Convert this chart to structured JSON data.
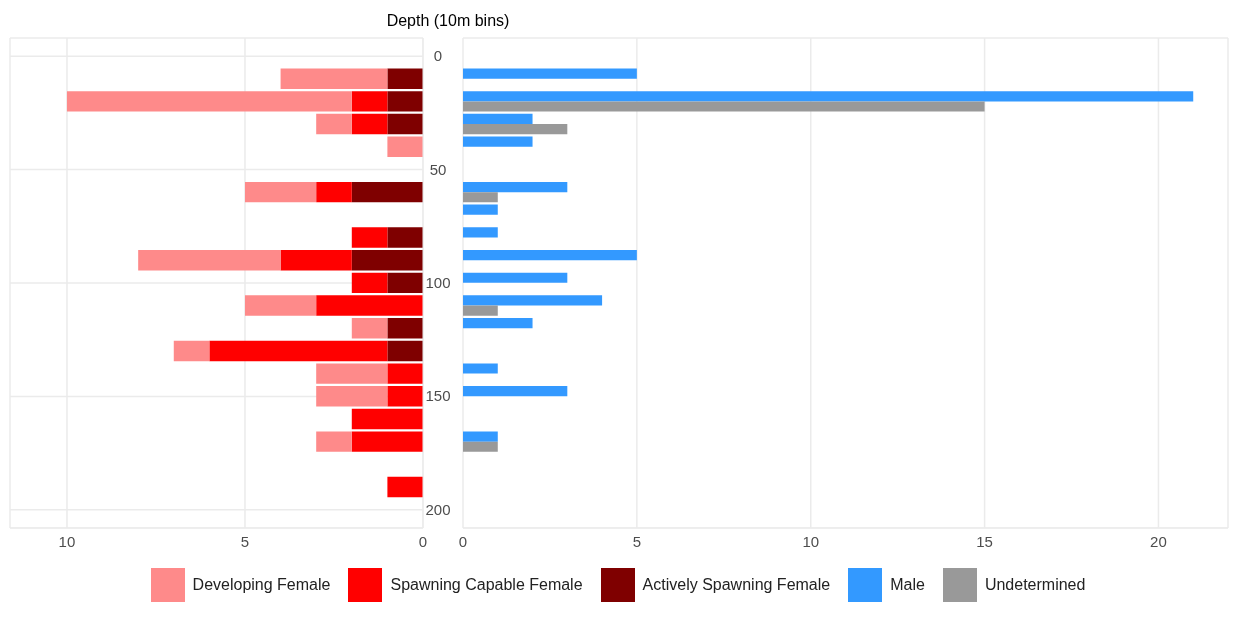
{
  "chart_data": [
    {
      "type": "bar",
      "orientation": "horizontal",
      "stacked": true,
      "ylabel": "Depth (10m bins)",
      "x": [
        10,
        20,
        30,
        40,
        50,
        60,
        70,
        80,
        90,
        100,
        110,
        120,
        130,
        140,
        150,
        160,
        170,
        180,
        190
      ],
      "ylim": [
        208,
        -8
      ],
      "yticks": [
        0,
        50,
        100,
        150,
        200
      ],
      "xlim": [
        11.6,
        0
      ],
      "xticks": [
        0,
        5,
        10
      ],
      "grid": true,
      "legend": "bottom",
      "series": [
        {
          "name": "Actively Spawning Female",
          "color": "#7f0000",
          "values": [
            1,
            1,
            1,
            null,
            null,
            2,
            null,
            1,
            2,
            1,
            null,
            1,
            1,
            null,
            null,
            null,
            null,
            null,
            null
          ]
        },
        {
          "name": "Spawning Capable Female",
          "color": "#ff0000",
          "values": [
            null,
            1,
            1,
            null,
            null,
            1,
            null,
            1,
            2,
            1,
            3,
            null,
            5,
            1,
            1,
            2,
            2,
            null,
            1
          ]
        },
        {
          "name": "Developing Female",
          "color": "#fe8a8a",
          "values": [
            3,
            8,
            1,
            1,
            null,
            2,
            null,
            null,
            4,
            null,
            2,
            1,
            1,
            2,
            2,
            null,
            1,
            null,
            null
          ]
        }
      ]
    },
    {
      "type": "bar",
      "orientation": "horizontal",
      "x": [
        10,
        20,
        30,
        40,
        50,
        60,
        70,
        80,
        90,
        100,
        110,
        120,
        130,
        140,
        150,
        160,
        170
      ],
      "ylim": [
        208,
        -8
      ],
      "yticks": [
        0,
        50,
        100,
        150,
        200
      ],
      "xlim": [
        0,
        22
      ],
      "xticks": [
        0,
        5,
        10,
        15,
        20
      ],
      "grid": true,
      "legend": "bottom",
      "tick_labels": "x",
      "series": [
        {
          "name": "Male",
          "color": "#3399ff",
          "values": [
            5,
            21,
            2,
            2,
            null,
            3,
            1,
            1,
            5,
            3,
            4,
            2,
            null,
            1,
            3,
            null,
            1
          ]
        },
        {
          "name": "Undetermined",
          "color": "#999999",
          "values": [
            null,
            15,
            3,
            null,
            null,
            1,
            null,
            null,
            null,
            null,
            1,
            null,
            null,
            null,
            null,
            null,
            1
          ]
        }
      ]
    }
  ]
}
